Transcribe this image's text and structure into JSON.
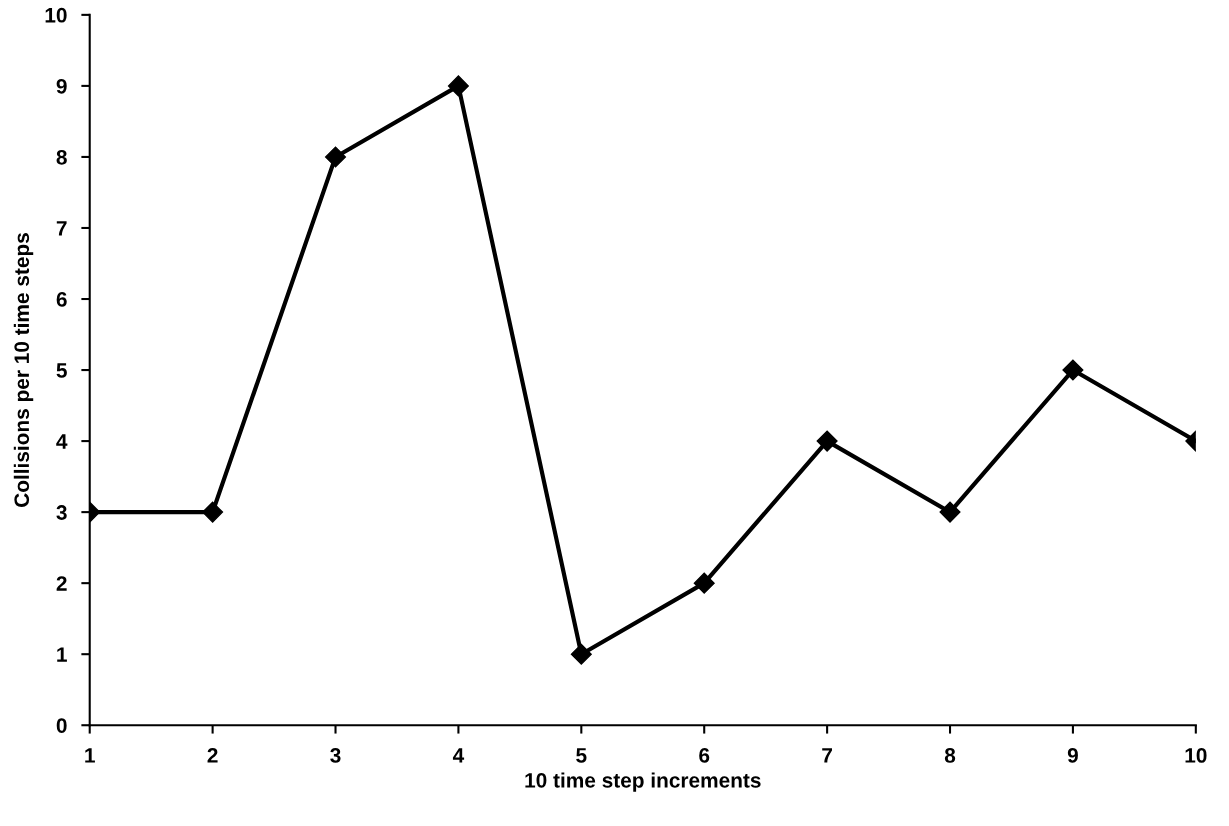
{
  "chart_data": {
    "type": "line",
    "xlabel": "10 time step increments",
    "ylabel": "Collisions per 10 time steps",
    "x": [
      1,
      2,
      3,
      4,
      5,
      6,
      7,
      8,
      9,
      10
    ],
    "series": [
      {
        "color": "#000000",
        "values": [
          3,
          3,
          8,
          9,
          1,
          2,
          4,
          3,
          5,
          4
        ]
      }
    ],
    "xlim": [
      1,
      10
    ],
    "xticks": [
      1,
      2,
      3,
      4,
      5,
      6,
      7,
      8,
      9,
      10
    ],
    "ylim": [
      0,
      10
    ],
    "yticks": [
      0,
      1,
      2,
      3,
      4,
      5,
      6,
      7,
      8,
      9,
      10
    ],
    "grid": false,
    "legend": false,
    "marker": "diamond",
    "line_style": "solid"
  }
}
